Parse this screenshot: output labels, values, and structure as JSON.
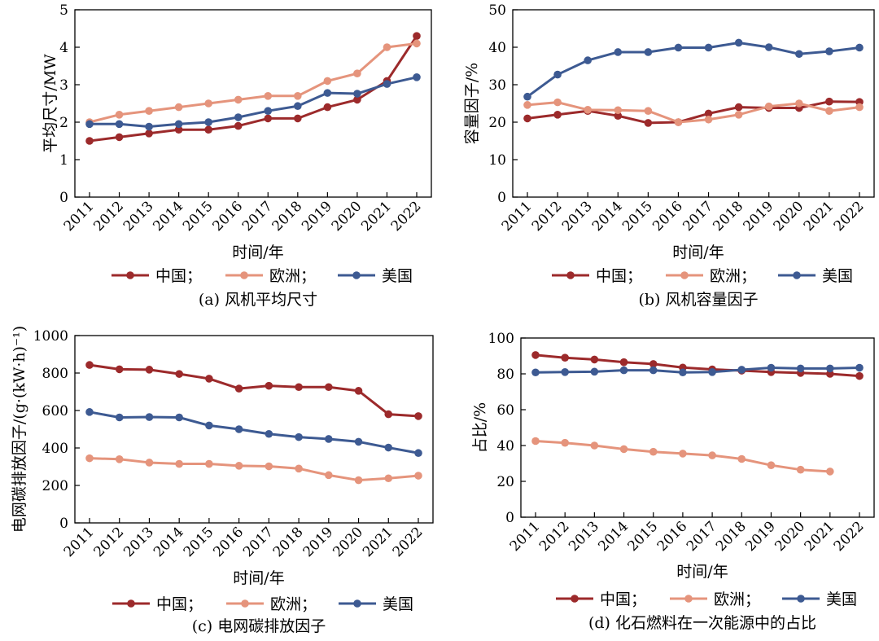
{
  "chart_data": [
    {
      "type": "line",
      "panel": "a",
      "title": "(a) 风机平均尺寸",
      "xlabel": "时间/年",
      "ylabel": "平均尺寸/MW",
      "ylim": [
        0,
        5
      ],
      "yticks": [
        "0",
        "1",
        "2",
        "3",
        "4",
        "5"
      ],
      "categories": [
        "2011",
        "2012",
        "2013",
        "2014",
        "2015",
        "2016",
        "2017",
        "2018",
        "2019",
        "2020",
        "2021",
        "2022"
      ],
      "series": [
        {
          "name": "中国",
          "values": [
            1.5,
            1.6,
            1.7,
            1.8,
            1.8,
            1.9,
            2.1,
            2.1,
            2.4,
            2.6,
            3.1,
            4.3
          ]
        },
        {
          "name": "欧洲",
          "values": [
            2.0,
            2.2,
            2.3,
            2.4,
            2.5,
            2.6,
            2.7,
            2.7,
            3.1,
            3.3,
            4.0,
            4.1
          ]
        },
        {
          "name": "美国",
          "values": [
            1.95,
            1.95,
            1.88,
            1.95,
            2.0,
            2.13,
            2.3,
            2.43,
            2.78,
            2.76,
            3.02,
            3.2
          ]
        }
      ],
      "legend_labels": [
        "中国；",
        "欧洲；",
        "美国"
      ],
      "legend_position": "bottom",
      "grid": false
    },
    {
      "type": "line",
      "panel": "b",
      "title": "(b) 风机容量因子",
      "xlabel": "时间/年",
      "ylabel": "容量因子/%",
      "ylim": [
        0,
        50
      ],
      "yticks": [
        "0",
        "10",
        "20",
        "30",
        "40",
        "50"
      ],
      "categories": [
        "2011",
        "2012",
        "2013",
        "2014",
        "2015",
        "2016",
        "2017",
        "2018",
        "2019",
        "2020",
        "2021",
        "2022"
      ],
      "series": [
        {
          "name": "中国",
          "values": [
            21.0,
            22.0,
            23.0,
            21.7,
            19.8,
            20.0,
            22.3,
            24.0,
            23.8,
            23.8,
            25.5,
            25.4
          ]
        },
        {
          "name": "欧洲",
          "values": [
            24.6,
            25.3,
            23.3,
            23.2,
            23.0,
            20.0,
            20.7,
            22.0,
            24.2,
            25.0,
            23.0,
            24.0
          ]
        },
        {
          "name": "美国",
          "values": [
            26.8,
            32.7,
            36.5,
            38.7,
            38.7,
            39.9,
            39.9,
            41.2,
            40.0,
            38.2,
            38.9,
            39.9
          ]
        }
      ],
      "legend_labels": [
        "中国；",
        "欧洲；",
        "美国"
      ],
      "legend_position": "bottom",
      "grid": false
    },
    {
      "type": "line",
      "panel": "c",
      "title": "(c) 电网碳排放因子",
      "xlabel": "时间/年",
      "ylabel": "电网碳排放因子/(g·(kW·h)⁻¹)",
      "ylim": [
        0,
        1000
      ],
      "yticks": [
        "0",
        "200",
        "400",
        "600",
        "800",
        "1000"
      ],
      "categories": [
        "2011",
        "2012",
        "2013",
        "2014",
        "2015",
        "2016",
        "2017",
        "2018",
        "2019",
        "2020",
        "2021",
        "2022"
      ],
      "series": [
        {
          "name": "中国",
          "values": [
            843,
            820,
            818,
            795,
            770,
            717,
            732,
            725,
            725,
            705,
            580,
            570
          ]
        },
        {
          "name": "欧洲",
          "values": [
            345,
            340,
            322,
            315,
            315,
            305,
            302,
            290,
            255,
            228,
            238,
            252
          ]
        },
        {
          "name": "美国",
          "values": [
            592,
            563,
            565,
            563,
            520,
            500,
            475,
            458,
            448,
            433,
            402,
            373
          ]
        }
      ],
      "legend_labels": [
        "中国；",
        "欧洲；",
        "美国"
      ],
      "legend_position": "bottom",
      "grid": false
    },
    {
      "type": "line",
      "panel": "d",
      "title": "(d) 化石燃料在一次能源中的占比",
      "xlabel": "时间/年",
      "ylabel": "占比/%",
      "ylim": [
        0,
        100
      ],
      "yticks": [
        "0",
        "20",
        "40",
        "60",
        "80",
        "100"
      ],
      "categories": [
        "2011",
        "2012",
        "2013",
        "2014",
        "2015",
        "2016",
        "2017",
        "2018",
        "2019",
        "2020",
        "2021",
        "2022"
      ],
      "series": [
        {
          "name": "中国",
          "values": [
            90.5,
            89.0,
            88.0,
            86.5,
            85.5,
            83.5,
            82.5,
            81.8,
            81.0,
            80.5,
            80.0,
            78.8
          ]
        },
        {
          "name": "欧洲",
          "values": [
            42.5,
            41.5,
            40.0,
            38.0,
            36.5,
            35.5,
            34.5,
            32.5,
            29.0,
            26.5,
            25.5,
            null
          ]
        },
        {
          "name": "美国",
          "values": [
            80.8,
            81.0,
            81.2,
            82.0,
            82.0,
            80.8,
            81.0,
            82.3,
            83.4,
            83.0,
            83.0,
            83.4
          ]
        }
      ],
      "legend_labels": [
        "中国；",
        "欧洲；",
        "美国"
      ],
      "legend_position": "bottom",
      "grid": false
    }
  ],
  "colors": {
    "中国": "#9c2a2b",
    "欧洲": "#e5947c",
    "美国": "#3d5a92"
  }
}
